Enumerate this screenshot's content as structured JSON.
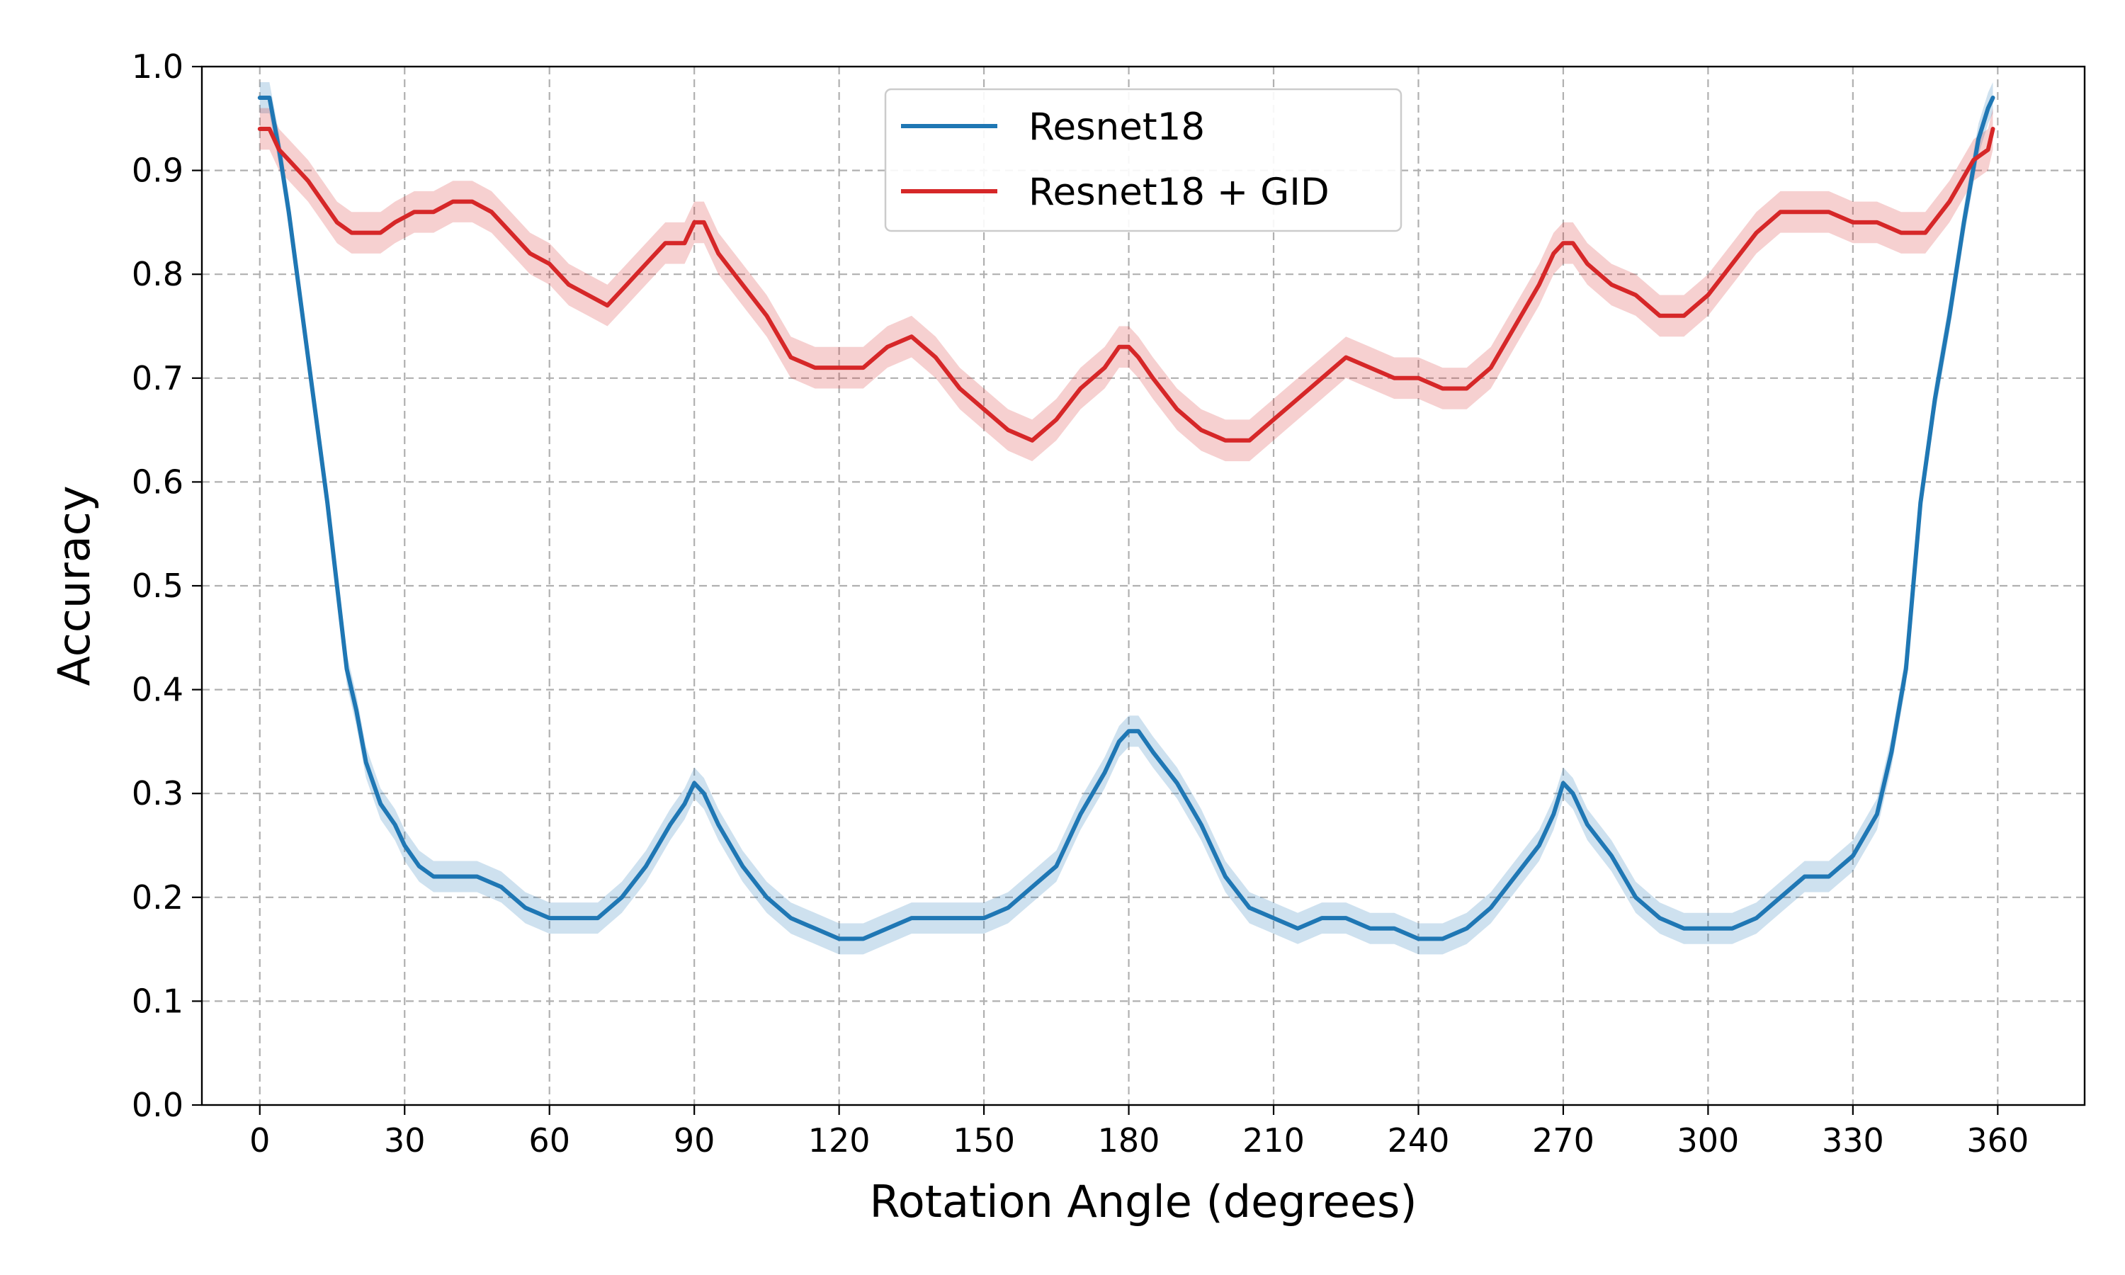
{
  "chart_data": {
    "type": "line",
    "title": "",
    "xlabel": "Rotation Angle (degrees)",
    "ylabel": "Accuracy",
    "xlim": [
      -12,
      378
    ],
    "ylim": [
      0.0,
      1.0
    ],
    "xticks": [
      0,
      30,
      60,
      90,
      120,
      150,
      180,
      210,
      240,
      270,
      300,
      330,
      360
    ],
    "xtick_labels": [
      "0",
      "30",
      "60",
      "90",
      "120",
      "150",
      "180",
      "210",
      "240",
      "270",
      "300",
      "330",
      "360"
    ],
    "yticks": [
      0.0,
      0.1,
      0.2,
      0.3,
      0.4,
      0.5,
      0.6,
      0.7,
      0.8,
      0.9,
      1.0
    ],
    "ytick_labels": [
      "0.0",
      "0.1",
      "0.2",
      "0.3",
      "0.4",
      "0.5",
      "0.6",
      "0.7",
      "0.8",
      "0.9",
      "1.0"
    ],
    "grid": true,
    "legend_position": "top-center",
    "series": [
      {
        "name": "Resnet18",
        "color": "#1f77b4",
        "x": [
          0,
          2,
          4,
          6,
          8,
          10,
          12,
          14,
          16,
          18,
          20,
          22,
          25,
          28,
          30,
          33,
          36,
          40,
          45,
          50,
          55,
          60,
          65,
          70,
          75,
          80,
          85,
          88,
          90,
          92,
          95,
          100,
          105,
          110,
          115,
          120,
          125,
          130,
          135,
          140,
          145,
          150,
          155,
          160,
          165,
          170,
          175,
          178,
          180,
          182,
          185,
          190,
          195,
          200,
          205,
          210,
          215,
          220,
          225,
          230,
          235,
          240,
          245,
          250,
          255,
          260,
          265,
          268,
          270,
          272,
          275,
          280,
          285,
          290,
          295,
          300,
          305,
          310,
          315,
          320,
          325,
          330,
          335,
          338,
          341,
          344,
          347,
          350,
          353,
          356,
          358,
          359
        ],
        "values": [
          0.97,
          0.97,
          0.92,
          0.86,
          0.79,
          0.72,
          0.65,
          0.58,
          0.5,
          0.42,
          0.38,
          0.33,
          0.29,
          0.27,
          0.25,
          0.23,
          0.22,
          0.22,
          0.22,
          0.21,
          0.19,
          0.18,
          0.18,
          0.18,
          0.2,
          0.23,
          0.27,
          0.29,
          0.31,
          0.3,
          0.27,
          0.23,
          0.2,
          0.18,
          0.17,
          0.16,
          0.16,
          0.17,
          0.18,
          0.18,
          0.18,
          0.18,
          0.19,
          0.21,
          0.23,
          0.28,
          0.32,
          0.35,
          0.36,
          0.36,
          0.34,
          0.31,
          0.27,
          0.22,
          0.19,
          0.18,
          0.17,
          0.18,
          0.18,
          0.17,
          0.17,
          0.16,
          0.16,
          0.17,
          0.19,
          0.22,
          0.25,
          0.28,
          0.31,
          0.3,
          0.27,
          0.24,
          0.2,
          0.18,
          0.17,
          0.17,
          0.17,
          0.18,
          0.2,
          0.22,
          0.22,
          0.24,
          0.28,
          0.34,
          0.42,
          0.58,
          0.68,
          0.76,
          0.85,
          0.93,
          0.96,
          0.97
        ],
        "band": 0.015
      },
      {
        "name": "Resnet18 + GID",
        "color": "#d62728",
        "x": [
          0,
          2,
          4,
          6,
          8,
          10,
          13,
          16,
          19,
          22,
          25,
          28,
          32,
          36,
          40,
          44,
          48,
          52,
          56,
          60,
          64,
          68,
          72,
          76,
          80,
          84,
          88,
          90,
          92,
          95,
          100,
          105,
          110,
          115,
          120,
          125,
          130,
          135,
          140,
          145,
          150,
          155,
          160,
          165,
          170,
          175,
          178,
          180,
          182,
          185,
          190,
          195,
          200,
          205,
          210,
          215,
          220,
          225,
          230,
          235,
          240,
          245,
          250,
          255,
          260,
          265,
          268,
          270,
          272,
          275,
          280,
          285,
          290,
          295,
          300,
          305,
          310,
          315,
          320,
          325,
          330,
          335,
          340,
          345,
          350,
          355,
          358,
          359
        ],
        "values": [
          0.94,
          0.94,
          0.92,
          0.91,
          0.9,
          0.89,
          0.87,
          0.85,
          0.84,
          0.84,
          0.84,
          0.85,
          0.86,
          0.86,
          0.87,
          0.87,
          0.86,
          0.84,
          0.82,
          0.81,
          0.79,
          0.78,
          0.77,
          0.79,
          0.81,
          0.83,
          0.83,
          0.85,
          0.85,
          0.82,
          0.79,
          0.76,
          0.72,
          0.71,
          0.71,
          0.71,
          0.73,
          0.74,
          0.72,
          0.69,
          0.67,
          0.65,
          0.64,
          0.66,
          0.69,
          0.71,
          0.73,
          0.73,
          0.72,
          0.7,
          0.67,
          0.65,
          0.64,
          0.64,
          0.66,
          0.68,
          0.7,
          0.72,
          0.71,
          0.7,
          0.7,
          0.69,
          0.69,
          0.71,
          0.75,
          0.79,
          0.82,
          0.83,
          0.83,
          0.81,
          0.79,
          0.78,
          0.76,
          0.76,
          0.78,
          0.81,
          0.84,
          0.86,
          0.86,
          0.86,
          0.85,
          0.85,
          0.84,
          0.84,
          0.87,
          0.91,
          0.92,
          0.94
        ],
        "band": 0.02
      }
    ]
  }
}
